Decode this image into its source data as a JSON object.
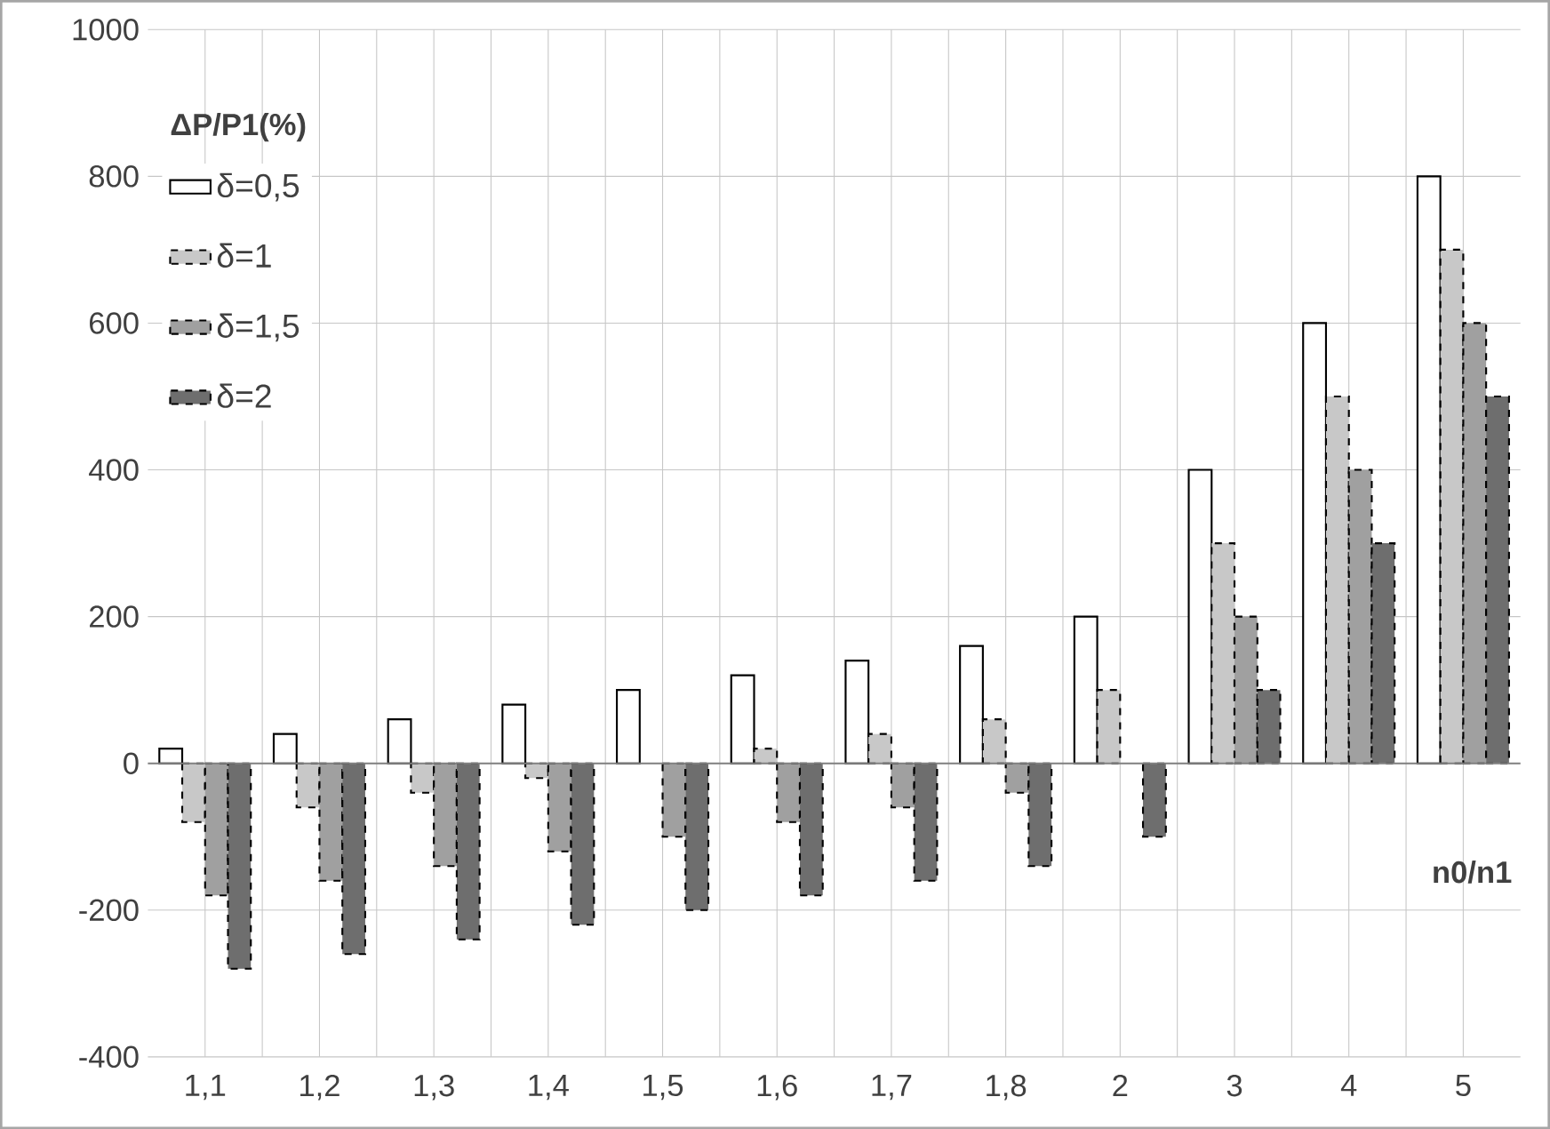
{
  "chart_data": {
    "type": "bar",
    "ylabel": "ΔP/P1(%)",
    "xlabel": "n0/n1",
    "categories": [
      "1,1",
      "1,2",
      "1,3",
      "1,4",
      "1,5",
      "1,6",
      "1,7",
      "1,8",
      "2",
      "3",
      "4",
      "5"
    ],
    "series": [
      {
        "name": "δ=0,5",
        "color": "#ffffff",
        "line_style": "solid",
        "values": [
          20,
          40,
          60,
          80,
          100,
          120,
          140,
          160,
          200,
          400,
          600,
          800
        ]
      },
      {
        "name": "δ=1",
        "color": "#c8c8c8",
        "line_style": "dashed",
        "values": [
          -80,
          -60,
          -40,
          -20,
          0,
          20,
          40,
          60,
          100,
          300,
          500,
          700
        ]
      },
      {
        "name": "δ=1,5",
        "color": "#a0a0a0",
        "line_style": "dashed",
        "values": [
          -180,
          -160,
          -140,
          -120,
          -100,
          -80,
          -60,
          -40,
          0,
          200,
          400,
          600
        ]
      },
      {
        "name": "δ=2",
        "color": "#6e6e6e",
        "line_style": "dashed",
        "values": [
          -280,
          -260,
          -240,
          -220,
          -200,
          -180,
          -160,
          -140,
          -100,
          100,
          300,
          500
        ]
      }
    ],
    "ylim": [
      -400,
      1000
    ],
    "yticks": [
      -400,
      -200,
      0,
      200,
      400,
      600,
      800,
      1000
    ],
    "grid": true,
    "legend": "top left"
  }
}
